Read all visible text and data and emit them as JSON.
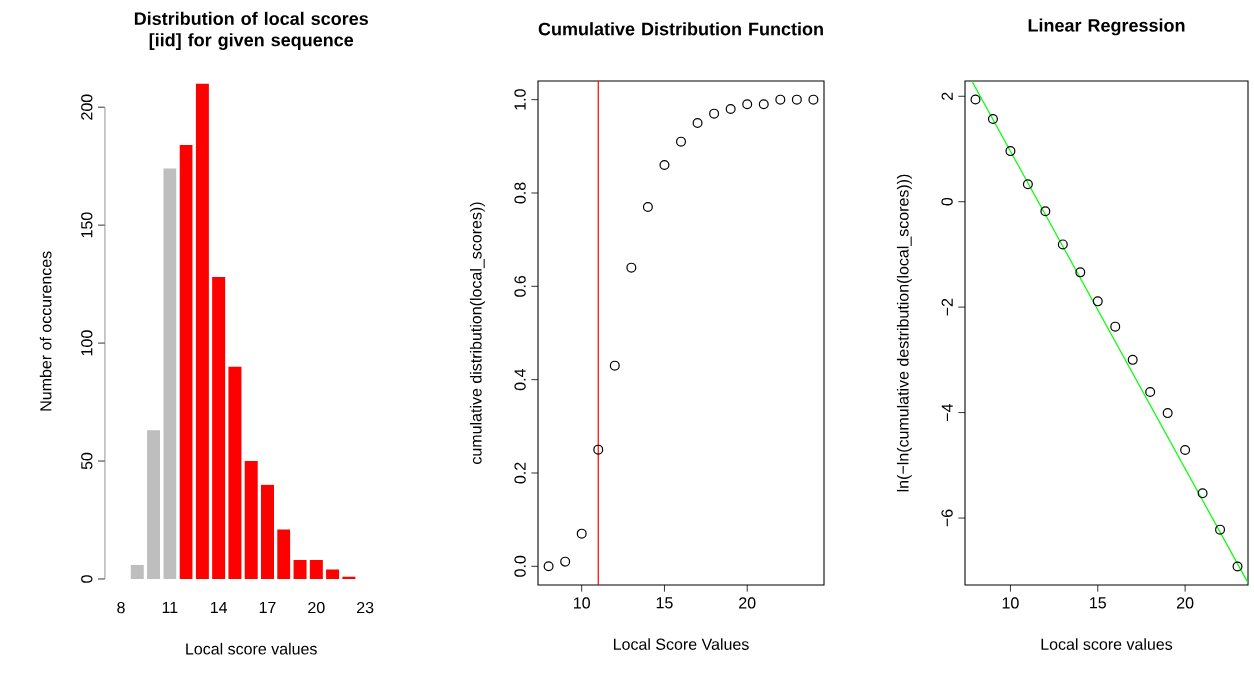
{
  "chart_data": [
    {
      "type": "bar",
      "title": "Distribution of local scores [iid] for given sequence",
      "xlabel": "Local score values",
      "ylabel": "Number of occurences",
      "categories": [
        "8",
        null,
        null,
        "11",
        null,
        null,
        "14",
        null,
        null,
        "17",
        null,
        null,
        "20",
        null,
        null,
        "23",
        null
      ],
      "values": [
        0,
        6,
        63,
        174,
        184,
        210,
        128,
        90,
        50,
        40,
        21,
        8,
        8,
        4,
        1,
        0,
        0
      ],
      "colors": [
        "#bebebe",
        "#bebebe",
        "#bebebe",
        "#bebebe",
        "#ff0000",
        "#ff0000",
        "#ff0000",
        "#ff0000",
        "#ff0000",
        "#ff0000",
        "#ff0000",
        "#ff0000",
        "#ff0000",
        "#ff0000",
        "#ff0000",
        "#ff0000",
        "#ff0000"
      ],
      "ylim": [
        0,
        210
      ],
      "yticks": [
        0,
        50,
        100,
        150,
        200
      ]
    },
    {
      "type": "scatter",
      "title": "Cumulative Distribution Function",
      "xlabel": "Local Score Values",
      "ylabel": "cumulative distribution(local_scores))",
      "x": [
        8,
        9,
        10,
        11,
        12,
        13,
        14,
        15,
        16,
        17,
        18,
        19,
        20,
        21,
        22,
        23,
        24
      ],
      "values": [
        0,
        0.01,
        0.07,
        0.25,
        0.43,
        0.64,
        0.77,
        0.86,
        0.91,
        0.95,
        0.97,
        0.98,
        0.99,
        0.99,
        1.0,
        1.0,
        1.0
      ],
      "color": "#000000",
      "marker": "circle",
      "xlim": [
        7.36,
        24.64
      ],
      "ylim": [
        -0.04,
        1.04
      ],
      "xticks": [
        10,
        15,
        20
      ],
      "yticks": [
        {
          "value": 0,
          "label": "0.0"
        },
        0.2,
        0.4,
        0.6,
        0.8,
        {
          "value": 1,
          "label": "1.0"
        }
      ],
      "ref_lines": [
        {
          "axis": "x",
          "value": 11,
          "color": "#ff0000"
        }
      ]
    },
    {
      "type": "scatter",
      "title": "Linear Regression",
      "xlabel": "Local score values",
      "ylabel": "ln(−ln(cumulative destribution(local_scores)))",
      "series": [
        {
          "color": "#000000",
          "marker": "circle",
          "x": [
            8,
            9,
            10,
            11,
            12,
            13,
            14,
            15,
            16,
            17,
            18,
            19,
            20,
            21,
            22,
            23
          ],
          "values": [
            1.94,
            1.57,
            0.96,
            0.33,
            -0.18,
            -0.81,
            -1.34,
            -1.89,
            -2.37,
            -3.0,
            -3.61,
            -4.01,
            -4.71,
            -5.53,
            -6.22,
            -6.92
          ]
        },
        {
          "type": "line",
          "color": "#00ff00",
          "marker": "none",
          "x": [
            7.79,
            23.6
          ],
          "values": [
            2.29,
            -7.23
          ]
        }
      ],
      "xlim": [
        7.4,
        23.6
      ],
      "ylim": [
        -7.27,
        2.29
      ],
      "xticks": [
        10,
        15,
        20
      ],
      "yticks": [
        {
          "value": -6,
          "label": "−6"
        },
        {
          "value": -4,
          "label": "−4"
        },
        {
          "value": -2,
          "label": "−2"
        },
        0,
        2
      ]
    }
  ]
}
